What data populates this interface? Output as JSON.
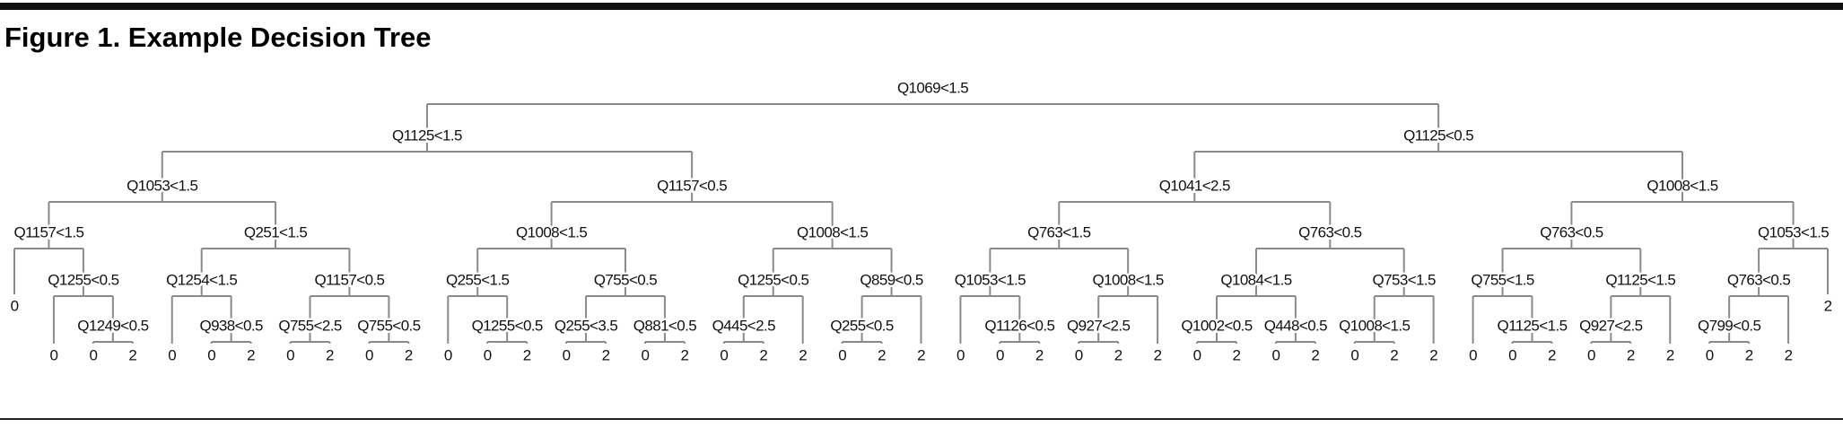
{
  "title": "Figure 1. Example Decision Tree",
  "tree": {
    "label": "Q1069<1.5",
    "children": [
      {
        "label": "Q1125<1.5",
        "children": [
          {
            "label": "Q1053<1.5",
            "children": [
              {
                "label": "Q1157<1.5",
                "children": [
                  {
                    "label": "0"
                  },
                  {
                    "label": "Q1255<0.5",
                    "children": [
                      {
                        "label": "0"
                      },
                      {
                        "label": "Q1249<0.5",
                        "children": [
                          {
                            "label": "0"
                          },
                          {
                            "label": "2"
                          }
                        ]
                      }
                    ]
                  }
                ]
              },
              {
                "label": "Q251<1.5",
                "children": [
                  {
                    "label": "Q1254<1.5",
                    "children": [
                      {
                        "label": "0"
                      },
                      {
                        "label": "Q938<0.5",
                        "children": [
                          {
                            "label": "0"
                          },
                          {
                            "label": "2"
                          }
                        ]
                      }
                    ]
                  },
                  {
                    "label": "Q1157<0.5",
                    "children": [
                      {
                        "label": "Q755<2.5",
                        "children": [
                          {
                            "label": "0"
                          },
                          {
                            "label": "2"
                          }
                        ]
                      },
                      {
                        "label": "Q755<0.5",
                        "children": [
                          {
                            "label": "0"
                          },
                          {
                            "label": "2"
                          }
                        ]
                      }
                    ]
                  }
                ]
              }
            ]
          },
          {
            "label": "Q1157<0.5",
            "children": [
              {
                "label": "Q1008<1.5",
                "children": [
                  {
                    "label": "Q255<1.5",
                    "children": [
                      {
                        "label": "0"
                      },
                      {
                        "label": "Q1255<0.5",
                        "children": [
                          {
                            "label": "0"
                          },
                          {
                            "label": "2"
                          }
                        ]
                      }
                    ]
                  },
                  {
                    "label": "Q755<0.5",
                    "children": [
                      {
                        "label": "Q255<3.5",
                        "children": [
                          {
                            "label": "0"
                          },
                          {
                            "label": "2"
                          }
                        ]
                      },
                      {
                        "label": "Q881<0.5",
                        "children": [
                          {
                            "label": "0"
                          },
                          {
                            "label": "2"
                          }
                        ]
                      }
                    ]
                  }
                ]
              },
              {
                "label": "Q1008<1.5",
                "children": [
                  {
                    "label": "Q1255<0.5",
                    "children": [
                      {
                        "label": "Q445<2.5",
                        "children": [
                          {
                            "label": "0"
                          },
                          {
                            "label": "2"
                          }
                        ]
                      },
                      {
                        "label": "2"
                      }
                    ]
                  },
                  {
                    "label": "Q859<0.5",
                    "children": [
                      {
                        "label": "Q255<0.5",
                        "children": [
                          {
                            "label": "0"
                          },
                          {
                            "label": "2"
                          }
                        ]
                      },
                      {
                        "label": "2"
                      }
                    ]
                  }
                ]
              }
            ]
          }
        ]
      },
      {
        "label": "Q1125<0.5",
        "children": [
          {
            "label": "Q1041<2.5",
            "children": [
              {
                "label": "Q763<1.5",
                "children": [
                  {
                    "label": "Q1053<1.5",
                    "children": [
                      {
                        "label": "0"
                      },
                      {
                        "label": "Q1126<0.5",
                        "children": [
                          {
                            "label": "0"
                          },
                          {
                            "label": "2"
                          }
                        ]
                      }
                    ]
                  },
                  {
                    "label": "Q1008<1.5",
                    "children": [
                      {
                        "label": "Q927<2.5",
                        "children": [
                          {
                            "label": "0"
                          },
                          {
                            "label": "2"
                          }
                        ]
                      },
                      {
                        "label": "2"
                      }
                    ]
                  }
                ]
              },
              {
                "label": "Q763<0.5",
                "children": [
                  {
                    "label": "Q1084<1.5",
                    "children": [
                      {
                        "label": "Q1002<0.5",
                        "children": [
                          {
                            "label": "0"
                          },
                          {
                            "label": "2"
                          }
                        ]
                      },
                      {
                        "label": "Q448<0.5",
                        "children": [
                          {
                            "label": "0"
                          },
                          {
                            "label": "2"
                          }
                        ]
                      }
                    ]
                  },
                  {
                    "label": "Q753<1.5",
                    "children": [
                      {
                        "label": "Q1008<1.5",
                        "children": [
                          {
                            "label": "0"
                          },
                          {
                            "label": "2"
                          }
                        ]
                      },
                      {
                        "label": "2"
                      }
                    ]
                  }
                ]
              }
            ]
          },
          {
            "label": "Q1008<1.5",
            "children": [
              {
                "label": "Q763<0.5",
                "children": [
                  {
                    "label": "Q755<1.5",
                    "children": [
                      {
                        "label": "0"
                      },
                      {
                        "label": "Q1125<1.5",
                        "children": [
                          {
                            "label": "0"
                          },
                          {
                            "label": "2"
                          }
                        ]
                      }
                    ]
                  },
                  {
                    "label": "Q1125<1.5",
                    "children": [
                      {
                        "label": "Q927<2.5",
                        "children": [
                          {
                            "label": "0"
                          },
                          {
                            "label": "2"
                          }
                        ]
                      },
                      {
                        "label": "2"
                      }
                    ]
                  }
                ]
              },
              {
                "label": "Q1053<1.5",
                "children": [
                  {
                    "label": "Q763<0.5",
                    "children": [
                      {
                        "label": "Q799<0.5",
                        "children": [
                          {
                            "label": "0"
                          },
                          {
                            "label": "2"
                          }
                        ]
                      },
                      {
                        "label": "2"
                      }
                    ]
                  },
                  {
                    "label": "2"
                  }
                ]
              }
            ]
          }
        ]
      }
    ]
  }
}
